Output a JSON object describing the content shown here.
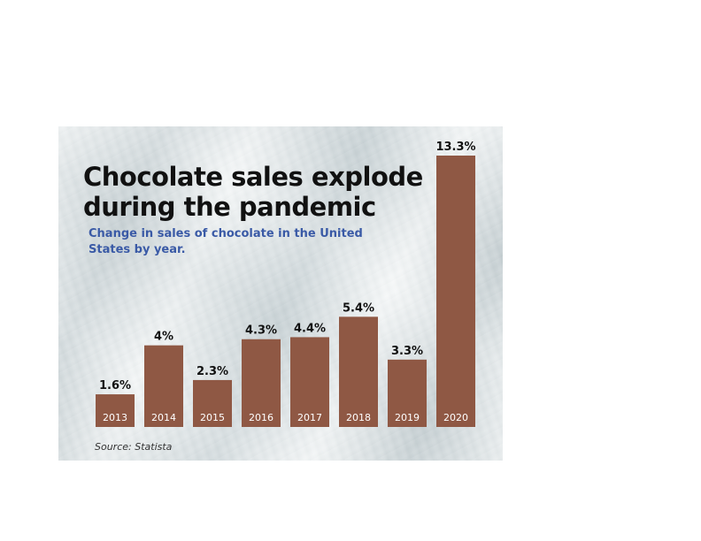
{
  "chart_data": {
    "type": "bar",
    "title": "Chocolate sales explode\nduring the pandemic",
    "subtitle": "Change in sales of chocolate in the United States by year.",
    "categories": [
      "2013",
      "2014",
      "2015",
      "2016",
      "2017",
      "2018",
      "2019",
      "2020"
    ],
    "values": [
      1.6,
      4,
      2.3,
      4.3,
      4.4,
      5.4,
      3.3,
      13.3
    ],
    "value_labels": [
      "1.6%",
      "4%",
      "2.3%",
      "4.3%",
      "4.4%",
      "5.4%",
      "3.3%",
      "13.3%"
    ],
    "xlabel": "",
    "ylabel": "",
    "ylim": [
      0,
      13.3
    ],
    "grid": false,
    "legend": "none",
    "source": "Source: Statista",
    "colors": {
      "bar": "#8f5844",
      "title": "#111111",
      "subtitle": "#3a5aa6"
    }
  }
}
